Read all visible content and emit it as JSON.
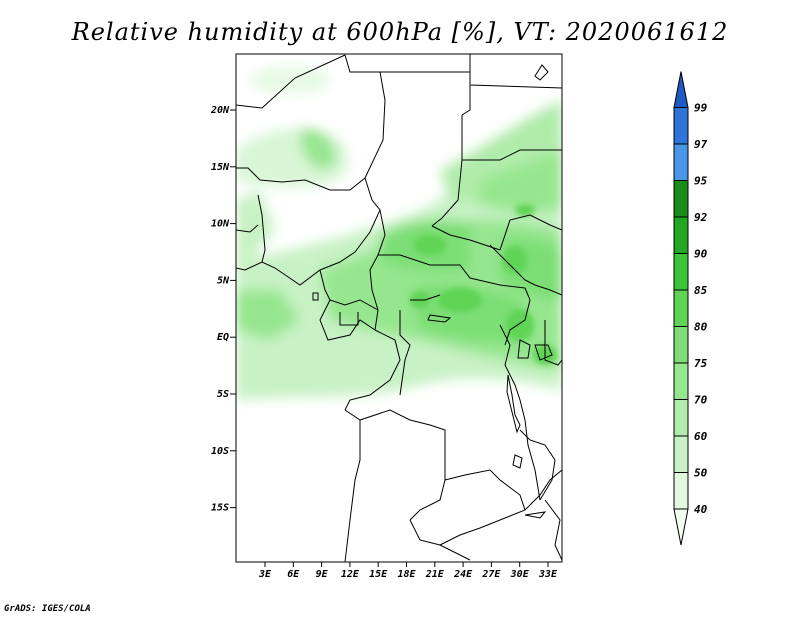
{
  "title": "Relative humidity at 600hPa [%], VT: 2020061612",
  "credit": "GrADS: IGES/COLA",
  "map": {
    "lat_ticks": [
      "20N",
      "15N",
      "10N",
      "5N",
      "EQ",
      "5S",
      "10S",
      "15S"
    ],
    "lon_ticks": [
      "3E",
      "6E",
      "9E",
      "12E",
      "15E",
      "18E",
      "21E",
      "24E",
      "27E",
      "30E",
      "33E"
    ]
  },
  "colorbar": {
    "labels": [
      "40",
      "50",
      "60",
      "70",
      "75",
      "80",
      "85",
      "90",
      "92",
      "95",
      "97",
      "99"
    ],
    "colors": [
      "#f0fff0",
      "#e0f9df",
      "#c8f2c5",
      "#b0ecaa",
      "#96e68f",
      "#7cde74",
      "#5fd455",
      "#3cc43a",
      "#22a822",
      "#1a8c1a",
      "#4a97e8",
      "#2f74d8",
      "#1e59c4"
    ]
  }
}
